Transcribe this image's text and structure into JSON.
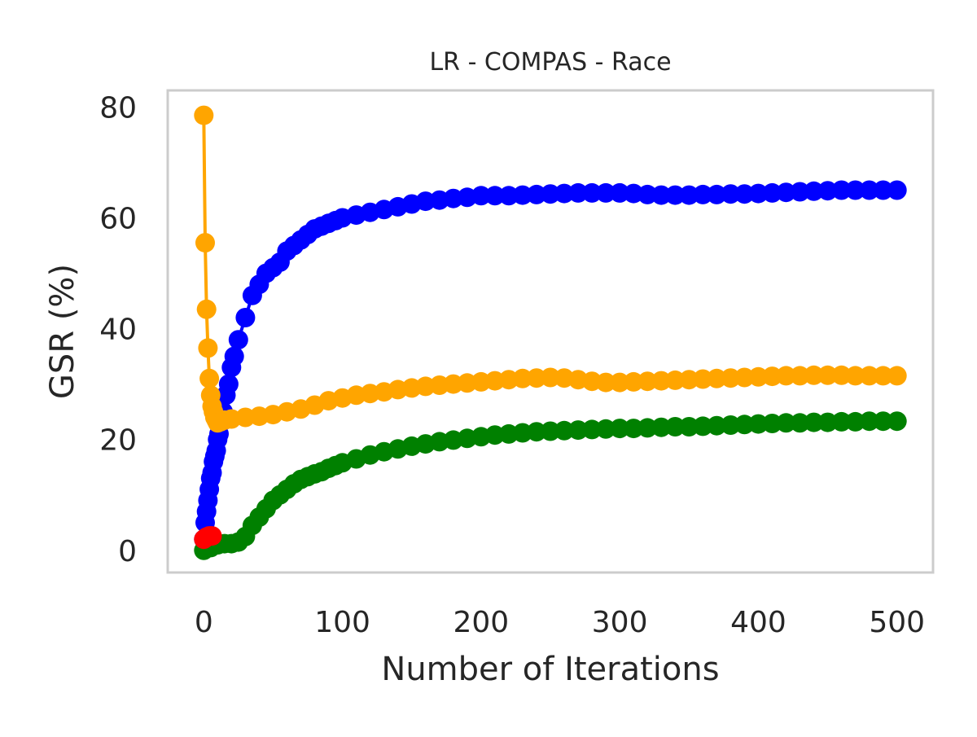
{
  "chart_data": {
    "type": "line",
    "title": "LR - COMPAS - Race",
    "xlabel": "Number of Iterations",
    "ylabel": "GSR (%)",
    "xlim": [
      -26,
      526
    ],
    "ylim": [
      -4,
      83
    ],
    "xticks": [
      0,
      100,
      200,
      300,
      400,
      500
    ],
    "yticks": [
      0,
      20,
      40,
      60,
      80
    ],
    "grid": false,
    "series": [
      {
        "color": "#0000ff",
        "marker": "circle",
        "points": [
          [
            0,
            2
          ],
          [
            1,
            5
          ],
          [
            2,
            7
          ],
          [
            3,
            9
          ],
          [
            4,
            11
          ],
          [
            5,
            13
          ],
          [
            6,
            14
          ],
          [
            7,
            16
          ],
          [
            8,
            17
          ],
          [
            9,
            18
          ],
          [
            10,
            20
          ],
          [
            11,
            21
          ],
          [
            12,
            23
          ],
          [
            13,
            24
          ],
          [
            14,
            25
          ],
          [
            16,
            28
          ],
          [
            18,
            30
          ],
          [
            20,
            33
          ],
          [
            22,
            35
          ],
          [
            25,
            38
          ],
          [
            30,
            42
          ],
          [
            35,
            46
          ],
          [
            40,
            48
          ],
          [
            45,
            50
          ],
          [
            50,
            51
          ],
          [
            55,
            52
          ],
          [
            60,
            54
          ],
          [
            65,
            55
          ],
          [
            70,
            56
          ],
          [
            75,
            57
          ],
          [
            80,
            58
          ],
          [
            85,
            58.5
          ],
          [
            90,
            59
          ],
          [
            95,
            59.5
          ],
          [
            100,
            60
          ],
          [
            110,
            60.5
          ],
          [
            120,
            61
          ],
          [
            130,
            61.5
          ],
          [
            140,
            62
          ],
          [
            150,
            62.5
          ],
          [
            160,
            63
          ],
          [
            170,
            63.2
          ],
          [
            180,
            63.5
          ],
          [
            190,
            63.7
          ],
          [
            200,
            64
          ],
          [
            210,
            64
          ],
          [
            220,
            64
          ],
          [
            230,
            64.1
          ],
          [
            240,
            64.2
          ],
          [
            250,
            64.3
          ],
          [
            260,
            64.4
          ],
          [
            270,
            64.5
          ],
          [
            280,
            64.5
          ],
          [
            290,
            64.5
          ],
          [
            300,
            64.5
          ],
          [
            310,
            64.4
          ],
          [
            320,
            64.2
          ],
          [
            330,
            64.1
          ],
          [
            340,
            64.1
          ],
          [
            350,
            64.1
          ],
          [
            360,
            64.2
          ],
          [
            370,
            64.2
          ],
          [
            380,
            64.3
          ],
          [
            390,
            64.3
          ],
          [
            400,
            64.4
          ],
          [
            410,
            64.5
          ],
          [
            420,
            64.6
          ],
          [
            430,
            64.7
          ],
          [
            440,
            64.8
          ],
          [
            450,
            64.9
          ],
          [
            460,
            65
          ],
          [
            470,
            65
          ],
          [
            480,
            65
          ],
          [
            490,
            65
          ],
          [
            500,
            65
          ]
        ]
      },
      {
        "color": "#ffa500",
        "marker": "circle",
        "points": [
          [
            0,
            78.5
          ],
          [
            1,
            55.5
          ],
          [
            2,
            43.5
          ],
          [
            3,
            36.5
          ],
          [
            4,
            31
          ],
          [
            5,
            28
          ],
          [
            6,
            26
          ],
          [
            7,
            25
          ],
          [
            8,
            24
          ],
          [
            9,
            23.5
          ],
          [
            10,
            23
          ],
          [
            12,
            23.2
          ],
          [
            15,
            23.5
          ],
          [
            20,
            23.7
          ],
          [
            30,
            24
          ],
          [
            40,
            24.2
          ],
          [
            50,
            24.5
          ],
          [
            60,
            25
          ],
          [
            70,
            25.5
          ],
          [
            80,
            26.2
          ],
          [
            90,
            27
          ],
          [
            100,
            27.5
          ],
          [
            110,
            28
          ],
          [
            120,
            28.3
          ],
          [
            130,
            28.6
          ],
          [
            140,
            29
          ],
          [
            150,
            29.3
          ],
          [
            160,
            29.6
          ],
          [
            170,
            29.8
          ],
          [
            180,
            30
          ],
          [
            190,
            30.2
          ],
          [
            200,
            30.4
          ],
          [
            210,
            30.6
          ],
          [
            220,
            30.8
          ],
          [
            230,
            31
          ],
          [
            240,
            31.1
          ],
          [
            250,
            31.2
          ],
          [
            260,
            31.1
          ],
          [
            270,
            30.8
          ],
          [
            280,
            30.5
          ],
          [
            290,
            30.3
          ],
          [
            300,
            30.3
          ],
          [
            310,
            30.4
          ],
          [
            320,
            30.5
          ],
          [
            330,
            30.6
          ],
          [
            340,
            30.7
          ],
          [
            350,
            30.8
          ],
          [
            360,
            30.9
          ],
          [
            370,
            31
          ],
          [
            380,
            31.1
          ],
          [
            390,
            31.2
          ],
          [
            400,
            31.3
          ],
          [
            410,
            31.4
          ],
          [
            420,
            31.5
          ],
          [
            430,
            31.5
          ],
          [
            440,
            31.6
          ],
          [
            450,
            31.6
          ],
          [
            460,
            31.6
          ],
          [
            470,
            31.5
          ],
          [
            480,
            31.5
          ],
          [
            490,
            31.5
          ],
          [
            500,
            31.5
          ]
        ]
      },
      {
        "color": "#008000",
        "marker": "circle",
        "points": [
          [
            0,
            0
          ],
          [
            5,
            0.5
          ],
          [
            10,
            1
          ],
          [
            15,
            1.2
          ],
          [
            20,
            1.2
          ],
          [
            25,
            1.5
          ],
          [
            30,
            2.5
          ],
          [
            35,
            4.5
          ],
          [
            40,
            6
          ],
          [
            45,
            7.5
          ],
          [
            50,
            9
          ],
          [
            55,
            10
          ],
          [
            60,
            11
          ],
          [
            65,
            12
          ],
          [
            70,
            12.8
          ],
          [
            75,
            13.3
          ],
          [
            80,
            13.8
          ],
          [
            85,
            14.2
          ],
          [
            90,
            14.8
          ],
          [
            95,
            15.3
          ],
          [
            100,
            15.8
          ],
          [
            110,
            16.5
          ],
          [
            120,
            17.2
          ],
          [
            130,
            17.8
          ],
          [
            140,
            18.3
          ],
          [
            150,
            18.8
          ],
          [
            160,
            19.2
          ],
          [
            170,
            19.6
          ],
          [
            180,
            19.9
          ],
          [
            190,
            20.2
          ],
          [
            200,
            20.5
          ],
          [
            210,
            20.8
          ],
          [
            220,
            21
          ],
          [
            230,
            21.2
          ],
          [
            240,
            21.4
          ],
          [
            250,
            21.5
          ],
          [
            260,
            21.6
          ],
          [
            270,
            21.7
          ],
          [
            280,
            21.8
          ],
          [
            290,
            21.9
          ],
          [
            300,
            22
          ],
          [
            310,
            22
          ],
          [
            320,
            22.1
          ],
          [
            330,
            22.2
          ],
          [
            340,
            22.3
          ],
          [
            350,
            22.3
          ],
          [
            360,
            22.4
          ],
          [
            370,
            22.5
          ],
          [
            380,
            22.6
          ],
          [
            390,
            22.7
          ],
          [
            400,
            22.8
          ],
          [
            410,
            22.9
          ],
          [
            420,
            23
          ],
          [
            430,
            23
          ],
          [
            440,
            23.1
          ],
          [
            450,
            23.1
          ],
          [
            460,
            23.2
          ],
          [
            470,
            23.2
          ],
          [
            480,
            23.3
          ],
          [
            490,
            23.3
          ],
          [
            500,
            23.3
          ]
        ]
      },
      {
        "color": "#ff0000",
        "marker": "circle",
        "points": [
          [
            0,
            2
          ],
          [
            1,
            2.2
          ],
          [
            2,
            2.4
          ],
          [
            3,
            2.5
          ],
          [
            4,
            2.6
          ],
          [
            5,
            2.6
          ],
          [
            6,
            2.6
          ]
        ]
      }
    ]
  }
}
